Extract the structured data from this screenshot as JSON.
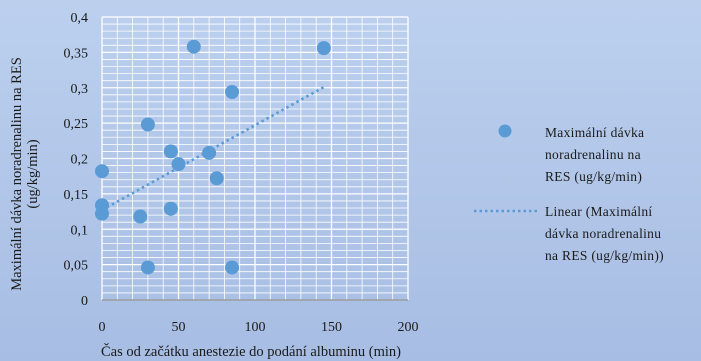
{
  "chart_data": {
    "type": "scatter",
    "xlabel": "Čas od začátku anestezie do podání albuminu (min)",
    "ylabel_lines": [
      "Maximální dávka noradrenalinu na RES",
      "(ug/kg/min)"
    ],
    "xlim": [
      0,
      200
    ],
    "ylim": [
      0,
      0.4
    ],
    "x_ticks": [
      0,
      50,
      100,
      150,
      200
    ],
    "x_tick_labels": [
      "0",
      "50",
      "100",
      "150",
      "200"
    ],
    "y_ticks": [
      0,
      0.05,
      0.1,
      0.15,
      0.2,
      0.25,
      0.3,
      0.35,
      0.4
    ],
    "y_tick_labels": [
      "0",
      "0,05",
      "0,1",
      "0,15",
      "0,2",
      "0,25",
      "0,3",
      "0,35",
      "0,4"
    ],
    "grid": true,
    "legend_position": "right",
    "colors": {
      "points": "#5b9bd5",
      "trendline": "#5b9bd5",
      "grid": "#ffffff"
    },
    "series": [
      {
        "name_lines": [
          "Maximální dávka",
          "noradrenalinu na",
          "RES (ug/kg/min)"
        ],
        "points": [
          {
            "x": 0,
            "y": 0.182
          },
          {
            "x": 0,
            "y": 0.134
          },
          {
            "x": 0,
            "y": 0.122
          },
          {
            "x": 25,
            "y": 0.118
          },
          {
            "x": 30,
            "y": 0.248
          },
          {
            "x": 30,
            "y": 0.046
          },
          {
            "x": 45,
            "y": 0.21
          },
          {
            "x": 45,
            "y": 0.129
          },
          {
            "x": 50,
            "y": 0.192
          },
          {
            "x": 60,
            "y": 0.358
          },
          {
            "x": 70,
            "y": 0.208
          },
          {
            "x": 75,
            "y": 0.172
          },
          {
            "x": 85,
            "y": 0.294
          },
          {
            "x": 85,
            "y": 0.046
          },
          {
            "x": 145,
            "y": 0.356
          }
        ]
      }
    ],
    "trendline": {
      "type": "linear",
      "name_lines": [
        "Linear (Maximální",
        "dávka noradrenalinu",
        "na RES (ug/kg/min))"
      ],
      "x": [
        0,
        145
      ],
      "y": [
        0.127,
        0.301
      ]
    }
  }
}
